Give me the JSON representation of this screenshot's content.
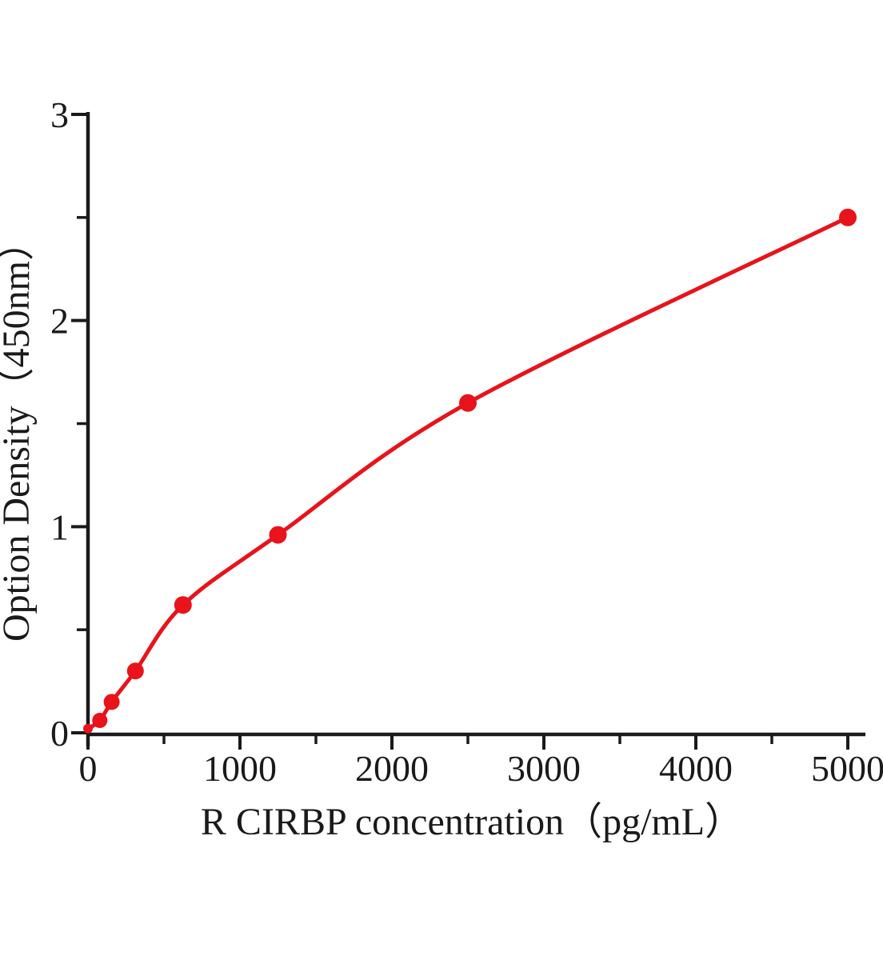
{
  "chart_data": {
    "type": "scatter",
    "subtype": "standard-curve-with-smooth-fit-line",
    "title": "",
    "xlabel": "R CIRBP concentration（pg/mL）",
    "ylabel": "Option Density（450nm）",
    "x": [
      0,
      78,
      156,
      312,
      625,
      1250,
      2500,
      5000
    ],
    "y": [
      0.02,
      0.06,
      0.15,
      0.3,
      0.62,
      0.96,
      1.6,
      2.5
    ],
    "xlim": [
      0,
      5000
    ],
    "ylim": [
      0,
      3
    ],
    "x_major_ticks": [
      0,
      1000,
      2000,
      3000,
      4000,
      5000
    ],
    "x_major_tick_labels": [
      "0",
      "1000",
      "2000",
      "3000",
      "4000",
      "5000"
    ],
    "x_minor_ticks": [
      500,
      1500,
      2500,
      3500,
      4500
    ],
    "y_major_ticks": [
      0,
      1,
      2,
      3
    ],
    "y_major_tick_labels": [
      "0",
      "1",
      "2",
      "3"
    ],
    "y_minor_ticks": [
      0.5,
      1.5,
      2.5
    ],
    "grid": false,
    "legend": null,
    "line_color": "#e8131b",
    "marker_color": "#e8131b",
    "axis_color": "#1a1a1a",
    "background_color": "#ffffff"
  }
}
